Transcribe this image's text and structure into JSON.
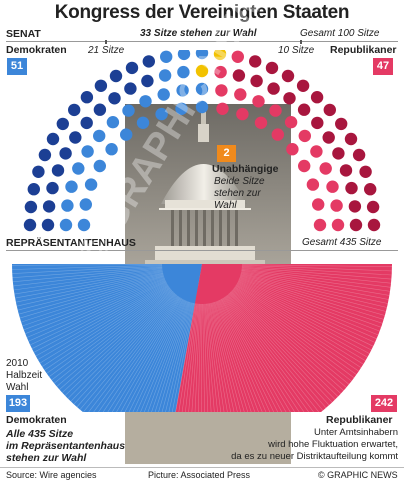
{
  "title": "Kongress der Vereinigten Staaten",
  "senate": {
    "label": "SENAT",
    "up_for_vote": "33 Sitze stehen zur Wahl",
    "dem_up": "21 Sitze",
    "rep_up": "10 Sitze",
    "total": "Gesamt 100 Sitze",
    "dem_label": "Demokraten",
    "dem_count": "51",
    "rep_label": "Republikaner",
    "rep_count": "47",
    "ind_count": "2",
    "ind_label": "Unabhängige",
    "ind_note_1": "Beide Sitze",
    "ind_note_2": "stehen zur",
    "ind_note_3": "Wahl"
  },
  "house": {
    "label": "REPRÄSENTANTENHAUS",
    "total": "Gesamt 435 Sitze",
    "midterm_1": "2010",
    "midterm_2": "Halbzeit",
    "midterm_3": "Wahl",
    "dem_count": "193",
    "dem_label": "Demokraten",
    "rep_count": "242",
    "rep_label": "Republikaner",
    "note_1": "Alle 435 Sitze",
    "note_2": "im Repräsentantenhaus",
    "note_3": "stehen zur Wahl",
    "rep_note_1": "Unter Amtsinhabern",
    "rep_note_2": "wird hohe Fluktuation erwartet,",
    "rep_note_3": "da es zu neuer Distriktaufteilung kommt"
  },
  "footer": {
    "source": "Source: Wire agencies",
    "picture": "Picture: Associated Press",
    "credit": "© GRAPHIC NEWS"
  },
  "watermark": "© GRAPHIC NEWS",
  "colors": {
    "dem_dark": "#1c3f94",
    "dem_light": "#3c86d9",
    "rep_dark": "#a8163e",
    "rep_light": "#e43a64",
    "ind": "#f2c200",
    "ind_box": "#f08a1c"
  }
}
